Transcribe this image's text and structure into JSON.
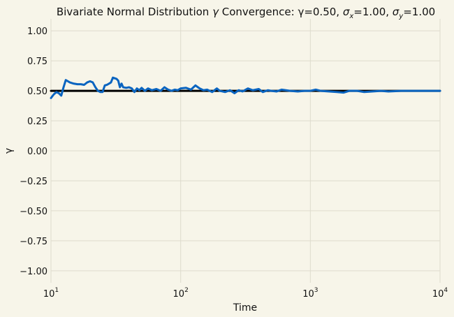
{
  "chart_data": {
    "type": "line",
    "title_parts": {
      "prefix": "Bivariate Normal Distribution ",
      "gamma_symbol": "γ",
      "middle": " Convergence: γ=0.50, ",
      "sigma": "σ",
      "sub_x": "x",
      "sx_value": "=1.00, ",
      "sub_y": "y",
      "sy_value": "=1.00"
    },
    "xlabel": "Time",
    "ylabel": "γ",
    "xscale": "log",
    "xlim": [
      10,
      10000
    ],
    "ylim": [
      -1.1,
      1.1
    ],
    "grid": true,
    "background": "#f7f5e9",
    "grid_color": "#dedbcd",
    "yticks": [
      -1.0,
      -0.75,
      -0.5,
      -0.25,
      0.0,
      0.25,
      0.5,
      0.75,
      1.0
    ],
    "ytick_labels": [
      "−1.00",
      "−0.75",
      "−0.50",
      "−0.25",
      "0.00",
      "0.25",
      "0.50",
      "0.75",
      "1.00"
    ],
    "xticks": [
      {
        "value": 10,
        "base": "10",
        "exp": "1"
      },
      {
        "value": 100,
        "base": "10",
        "exp": "2"
      },
      {
        "value": 1000,
        "base": "10",
        "exp": "3"
      },
      {
        "value": 10000,
        "base": "10",
        "exp": "4"
      }
    ],
    "series": [
      {
        "role": "reference",
        "color": "#000000",
        "x": [
          10,
          10000
        ],
        "y": [
          0.5,
          0.5
        ]
      },
      {
        "role": "estimate",
        "color": "#0a64c0",
        "x": [
          10,
          10.5,
          11,
          11.5,
          12,
          12.5,
          13,
          14,
          15,
          16,
          17,
          18,
          19,
          20,
          21,
          22,
          23,
          24,
          25,
          26,
          27,
          28,
          29,
          30,
          31,
          32,
          33,
          34,
          35,
          36,
          38,
          40,
          42,
          44,
          46,
          48,
          50,
          53,
          56,
          60,
          65,
          70,
          75,
          80,
          85,
          90,
          95,
          100,
          110,
          120,
          130,
          140,
          150,
          160,
          175,
          190,
          200,
          220,
          240,
          260,
          280,
          300,
          330,
          360,
          400,
          430,
          470,
          500,
          550,
          600,
          700,
          800,
          900,
          1000,
          1100,
          1200,
          1400,
          1600,
          1800,
          2000,
          2300,
          2600,
          3000,
          3500,
          4000,
          5000,
          6000,
          7000,
          8000,
          9000,
          10000
        ],
        "y": [
          0.44,
          0.47,
          0.49,
          0.48,
          0.46,
          0.53,
          0.59,
          0.57,
          0.56,
          0.555,
          0.555,
          0.55,
          0.57,
          0.58,
          0.57,
          0.53,
          0.5,
          0.49,
          0.49,
          0.545,
          0.55,
          0.56,
          0.57,
          0.61,
          0.605,
          0.6,
          0.585,
          0.53,
          0.56,
          0.53,
          0.525,
          0.53,
          0.52,
          0.49,
          0.52,
          0.505,
          0.525,
          0.5,
          0.52,
          0.505,
          0.515,
          0.5,
          0.53,
          0.51,
          0.5,
          0.51,
          0.505,
          0.52,
          0.525,
          0.51,
          0.545,
          0.52,
          0.505,
          0.51,
          0.49,
          0.52,
          0.5,
          0.49,
          0.505,
          0.48,
          0.505,
          0.495,
          0.52,
          0.505,
          0.515,
          0.49,
          0.505,
          0.5,
          0.495,
          0.51,
          0.5,
          0.495,
          0.5,
          0.5,
          0.51,
          0.5,
          0.495,
          0.49,
          0.485,
          0.5,
          0.5,
          0.49,
          0.495,
          0.5,
          0.495,
          0.5,
          0.5,
          0.5,
          0.5,
          0.5,
          0.5
        ]
      }
    ]
  }
}
